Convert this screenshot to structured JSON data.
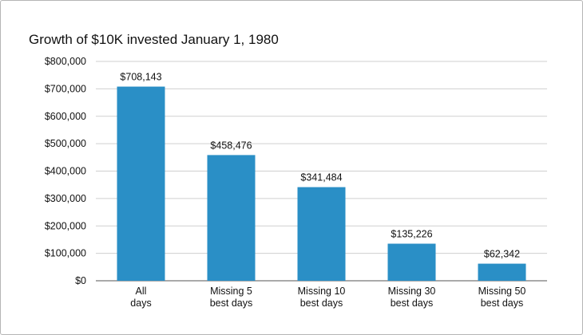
{
  "chart_data": {
    "type": "bar",
    "title": "Growth of $10K invested January 1, 1980",
    "categories": [
      [
        "All",
        "days"
      ],
      [
        "Missing 5",
        "best days"
      ],
      [
        "Missing 10",
        "best days"
      ],
      [
        "Missing 30",
        "best days"
      ],
      [
        "Missing 50",
        "best days"
      ]
    ],
    "values": [
      708143,
      458476,
      341484,
      135226,
      62342
    ],
    "data_labels": [
      "$708,143",
      "$458,476",
      "$341,484",
      "$135,226",
      "$62,342"
    ],
    "ylim": [
      0,
      800000
    ],
    "y_ticks": [
      0,
      100000,
      200000,
      300000,
      400000,
      500000,
      600000,
      700000,
      800000
    ],
    "y_tick_labels": [
      "$0",
      "$100,000",
      "$200,000",
      "$300,000",
      "$400,000",
      "$500,000",
      "$600,000",
      "$700,000",
      "$800,000"
    ],
    "grid": true,
    "bar_color": "#2a8fc6",
    "grid_color": "#cfcfcf",
    "axis_color": "#555555"
  }
}
